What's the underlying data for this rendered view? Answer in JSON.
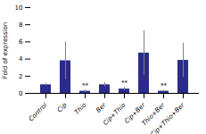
{
  "chart_data": {
    "type": "bar",
    "categories": [
      "Control",
      "Cip",
      "Thio",
      "Ber",
      "Cip+Thio",
      "Cip+Ber",
      "Thio+Ber",
      "Cip+Thio+Ber"
    ],
    "values": [
      1.0,
      3.8,
      0.25,
      1.0,
      0.5,
      4.7,
      0.25,
      3.85
    ],
    "errors": [
      0.15,
      2.2,
      0.15,
      0.25,
      0.2,
      2.6,
      0.1,
      2.0
    ],
    "color": "#2b2b8c",
    "ylabel": "Fold of expression",
    "ylim": [
      0,
      10
    ],
    "yticks": [
      0,
      2,
      4,
      6,
      8,
      10
    ],
    "annotations": [
      {
        "category": "Thio",
        "text": "**"
      },
      {
        "category": "Cip+Thio",
        "text": "**"
      },
      {
        "category": "Thio+Ber",
        "text": "**"
      }
    ]
  }
}
